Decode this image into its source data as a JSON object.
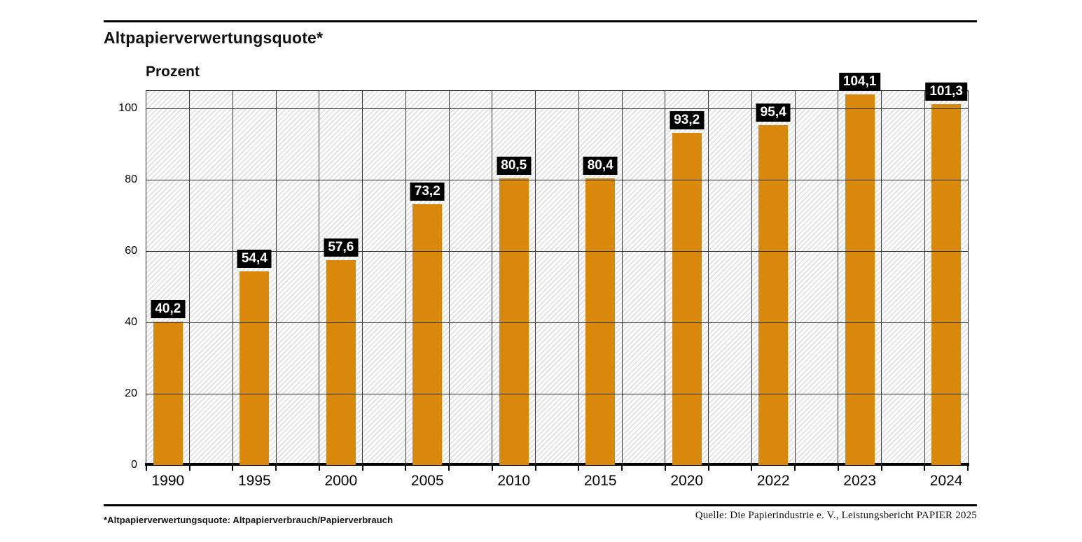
{
  "chart_data": {
    "type": "bar",
    "title": "Altpapierverwertungsquote*",
    "ylabel": "Prozent",
    "xlabel": "",
    "categories": [
      "1990",
      "1995",
      "2000",
      "2005",
      "2010",
      "2015",
      "2020",
      "2022",
      "2023",
      "2024"
    ],
    "values": [
      40.2,
      54.4,
      57.6,
      73.2,
      80.5,
      80.4,
      93.2,
      95.4,
      104.1,
      101.3
    ],
    "value_labels": [
      "40,2",
      "54,4",
      "57,6",
      "73,2",
      "80,5",
      "80,4",
      "93,2",
      "95,4",
      "104,1",
      "101,3"
    ],
    "yticks": [
      0,
      20,
      40,
      60,
      80,
      100
    ],
    "ylim": [
      0,
      105
    ],
    "grid": true,
    "legend": false,
    "background_hatch": true,
    "bar_color": "#D8890B",
    "value_label_bg": "#000000",
    "value_label_color": "#FFFFFF"
  },
  "footer": {
    "note": "*Altpapierverwertungsquote: Altpapierverbrauch/Papierverbrauch",
    "source": "Quelle: Die Papierindustrie e. V., Leistungsbericht PAPIER 2025"
  }
}
